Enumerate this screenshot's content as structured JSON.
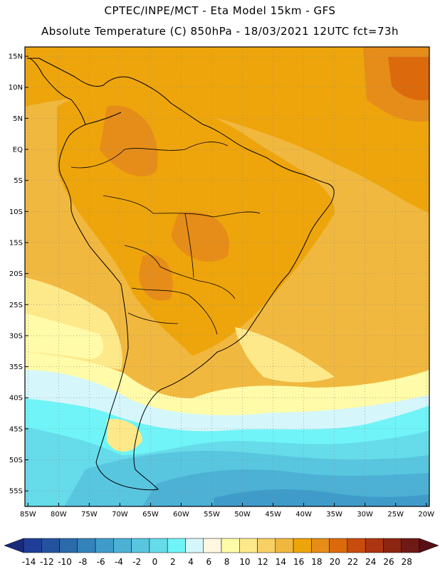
{
  "header": {
    "line1": "CPTEC/INPE/MCT -  Eta Model 15km - GFS",
    "line2": "Absolute Temperature (C) 850hPa - 18/03/2021 12UTC fct=73h"
  },
  "map": {
    "lat_labels": [
      "15N",
      "10N",
      "5N",
      "EQ",
      "5S",
      "10S",
      "15S",
      "20S",
      "25S",
      "30S",
      "35S",
      "40S",
      "45S",
      "50S",
      "55S"
    ],
    "lat_values": [
      15,
      10,
      5,
      0,
      -5,
      -10,
      -15,
      -20,
      -25,
      -30,
      -35,
      -40,
      -45,
      -50,
      -55
    ],
    "lon_labels": [
      "85W",
      "80W",
      "75W",
      "70W",
      "65W",
      "60W",
      "55W",
      "50W",
      "45W",
      "40W",
      "35W",
      "30W",
      "25W",
      "20W"
    ],
    "lon_values": [
      -85,
      -80,
      -75,
      -70,
      -65,
      -60,
      -55,
      -50,
      -45,
      -40,
      -35,
      -30,
      -25,
      -20
    ],
    "lat_range": [
      -57.5,
      16.5
    ],
    "lon_range": [
      -85.5,
      -19.5
    ]
  },
  "colorbar": {
    "labels": [
      "-14",
      "-12",
      "-10",
      "-8",
      "-6",
      "-4",
      "-2",
      "0",
      "2",
      "4",
      "6",
      "8",
      "10",
      "12",
      "14",
      "16",
      "18",
      "20",
      "22",
      "24",
      "26",
      "28"
    ],
    "colors": [
      "#1f3d99",
      "#24529f",
      "#2b6aab",
      "#3484bb",
      "#3f9cca",
      "#4cb1d5",
      "#59c6e0",
      "#66dbea",
      "#70f4f7",
      "#d5f6fb",
      "#fff7e0",
      "#fffba8",
      "#fde98a",
      "#f7d066",
      "#f1b83f",
      "#eea50c",
      "#e68d19",
      "#dc6a0c",
      "#c84c0d",
      "#ad3512",
      "#8c2512",
      "#6f1a16"
    ]
  }
}
